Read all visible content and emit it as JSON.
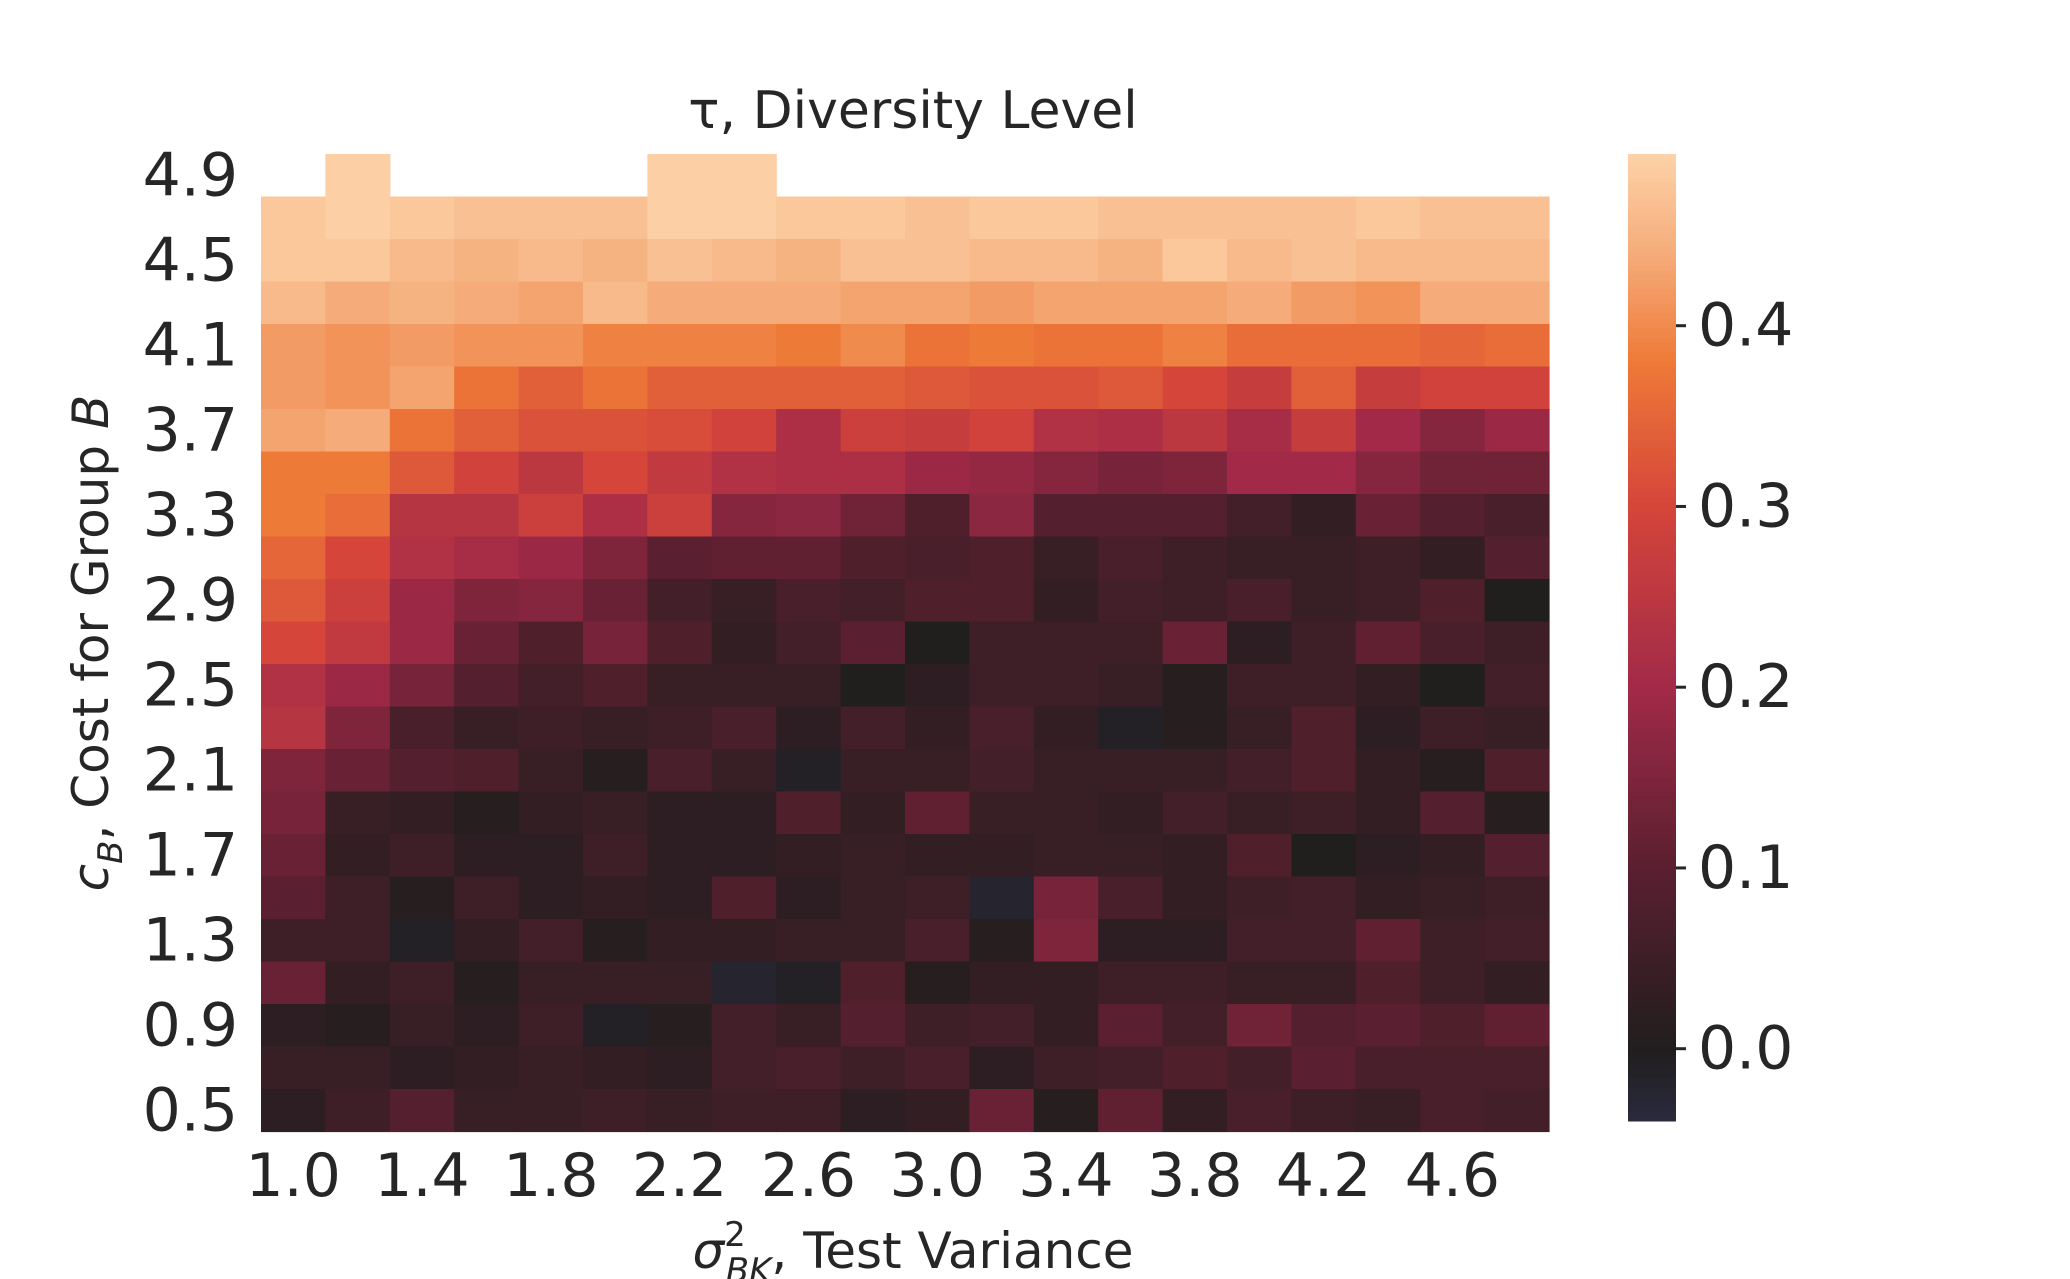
{
  "chart_data": {
    "type": "heatmap",
    "title": "τ, Diversity Level",
    "xlabel": "σ²_BK, Test Variance",
    "ylabel": "c_B, Cost for Group B",
    "x_tick_labels": [
      "1.0",
      "1.4",
      "1.8",
      "2.2",
      "2.6",
      "3.0",
      "3.4",
      "3.8",
      "4.2",
      "4.6"
    ],
    "y_tick_labels": [
      "4.9",
      "4.5",
      "4.1",
      "3.7",
      "3.3",
      "2.9",
      "2.5",
      "2.1",
      "1.7",
      "1.3",
      "0.9",
      "0.5"
    ],
    "x": [
      1.0,
      1.2,
      1.4,
      1.6,
      1.8,
      2.0,
      2.2,
      2.4,
      2.6,
      2.8,
      3.0,
      3.2,
      3.4,
      3.6,
      3.8,
      4.0,
      4.2,
      4.4,
      4.6,
      4.8
    ],
    "y": [
      4.9,
      4.7,
      4.5,
      4.3,
      4.1,
      3.9,
      3.7,
      3.5,
      3.3,
      3.1,
      2.9,
      2.7,
      2.5,
      2.3,
      2.1,
      1.9,
      1.7,
      1.5,
      1.3,
      1.1,
      0.9,
      0.7,
      0.5
    ],
    "values": [
      [
        null,
        0.49,
        null,
        null,
        null,
        null,
        0.49,
        0.49,
        null,
        null,
        null,
        null,
        null,
        null,
        null,
        null,
        null,
        null,
        null,
        null
      ],
      [
        0.48,
        0.49,
        0.48,
        0.47,
        0.47,
        0.47,
        0.49,
        0.49,
        0.48,
        0.48,
        0.47,
        0.48,
        0.48,
        0.47,
        0.47,
        0.47,
        0.47,
        0.48,
        0.47,
        0.47
      ],
      [
        0.48,
        0.48,
        0.46,
        0.45,
        0.46,
        0.45,
        0.47,
        0.46,
        0.45,
        0.47,
        0.47,
        0.46,
        0.46,
        0.45,
        0.48,
        0.46,
        0.47,
        0.46,
        0.46,
        0.46
      ],
      [
        0.46,
        0.44,
        0.45,
        0.44,
        0.43,
        0.46,
        0.44,
        0.44,
        0.44,
        0.43,
        0.43,
        0.42,
        0.43,
        0.43,
        0.43,
        0.44,
        0.42,
        0.41,
        0.44,
        0.44
      ],
      [
        0.42,
        0.41,
        0.42,
        0.41,
        0.41,
        0.39,
        0.39,
        0.39,
        0.38,
        0.4,
        0.37,
        0.38,
        0.37,
        0.37,
        0.39,
        0.36,
        0.36,
        0.36,
        0.35,
        0.36
      ],
      [
        0.42,
        0.41,
        0.43,
        0.37,
        0.34,
        0.37,
        0.34,
        0.34,
        0.34,
        0.34,
        0.33,
        0.32,
        0.32,
        0.33,
        0.3,
        0.27,
        0.34,
        0.27,
        0.29,
        0.29
      ],
      [
        0.43,
        0.44,
        0.37,
        0.34,
        0.32,
        0.32,
        0.31,
        0.29,
        0.22,
        0.28,
        0.27,
        0.29,
        0.23,
        0.22,
        0.25,
        0.21,
        0.27,
        0.2,
        0.16,
        0.19
      ],
      [
        0.38,
        0.38,
        0.33,
        0.29,
        0.25,
        0.3,
        0.26,
        0.23,
        0.22,
        0.22,
        0.19,
        0.18,
        0.16,
        0.14,
        0.15,
        0.2,
        0.2,
        0.16,
        0.13,
        0.13
      ],
      [
        0.38,
        0.36,
        0.24,
        0.24,
        0.28,
        0.22,
        0.28,
        0.16,
        0.17,
        0.13,
        0.08,
        0.17,
        0.09,
        0.09,
        0.09,
        0.06,
        0.03,
        0.12,
        0.09,
        0.07
      ],
      [
        0.35,
        0.3,
        0.23,
        0.21,
        0.19,
        0.15,
        0.1,
        0.11,
        0.11,
        0.08,
        0.07,
        0.08,
        0.04,
        0.07,
        0.05,
        0.04,
        0.04,
        0.05,
        0.03,
        0.09
      ],
      [
        0.33,
        0.28,
        0.19,
        0.15,
        0.16,
        0.12,
        0.06,
        0.04,
        0.07,
        0.06,
        0.08,
        0.08,
        0.03,
        0.06,
        0.05,
        0.07,
        0.04,
        0.05,
        0.08,
        0.0
      ],
      [
        0.3,
        0.26,
        0.19,
        0.12,
        0.08,
        0.14,
        0.08,
        0.03,
        0.06,
        0.1,
        0.0,
        0.05,
        0.05,
        0.05,
        0.12,
        0.02,
        0.05,
        0.11,
        0.07,
        0.05
      ],
      [
        0.23,
        0.19,
        0.14,
        0.09,
        0.06,
        0.08,
        0.04,
        0.04,
        0.04,
        0.0,
        0.02,
        0.05,
        0.05,
        0.04,
        0.01,
        0.05,
        0.05,
        0.03,
        0.0,
        0.06
      ],
      [
        0.24,
        0.15,
        0.07,
        0.04,
        0.05,
        0.04,
        0.05,
        0.07,
        0.02,
        0.06,
        0.03,
        0.07,
        0.03,
        -0.01,
        0.01,
        0.04,
        0.08,
        0.02,
        0.05,
        0.04
      ],
      [
        0.15,
        0.12,
        0.09,
        0.08,
        0.04,
        0.01,
        0.07,
        0.04,
        -0.01,
        0.04,
        0.04,
        0.06,
        0.04,
        0.04,
        0.04,
        0.06,
        0.08,
        0.03,
        0.01,
        0.08
      ],
      [
        0.14,
        0.04,
        0.03,
        0.01,
        0.03,
        0.04,
        0.02,
        0.02,
        0.08,
        0.03,
        0.11,
        0.04,
        0.04,
        0.03,
        0.06,
        0.04,
        0.05,
        0.03,
        0.09,
        0.01
      ],
      [
        0.12,
        0.03,
        0.05,
        0.02,
        0.02,
        0.05,
        0.02,
        0.02,
        0.03,
        0.04,
        0.03,
        0.03,
        0.04,
        0.04,
        0.03,
        0.08,
        0.0,
        0.02,
        0.03,
        0.09
      ],
      [
        0.1,
        0.05,
        0.01,
        0.05,
        0.02,
        0.03,
        0.02,
        0.08,
        0.02,
        0.04,
        0.05,
        -0.02,
        0.14,
        0.07,
        0.03,
        0.05,
        0.06,
        0.03,
        0.04,
        0.05
      ],
      [
        0.05,
        0.05,
        -0.01,
        0.03,
        0.06,
        0.01,
        0.03,
        0.03,
        0.04,
        0.04,
        0.07,
        0.01,
        0.15,
        0.02,
        0.02,
        0.06,
        0.06,
        0.11,
        0.05,
        0.06
      ],
      [
        0.12,
        0.03,
        0.05,
        0.01,
        0.04,
        0.04,
        0.04,
        -0.02,
        -0.01,
        0.08,
        0.01,
        0.03,
        0.03,
        0.05,
        0.05,
        0.04,
        0.04,
        0.08,
        0.05,
        0.03
      ],
      [
        0.02,
        0.01,
        0.04,
        0.02,
        0.05,
        -0.01,
        0.01,
        0.06,
        0.04,
        0.09,
        0.05,
        0.06,
        0.03,
        0.1,
        0.06,
        0.13,
        0.09,
        0.1,
        0.08,
        0.11
      ],
      [
        0.04,
        0.04,
        0.02,
        0.03,
        0.04,
        0.03,
        0.02,
        0.06,
        0.07,
        0.05,
        0.07,
        0.02,
        0.05,
        0.06,
        0.08,
        0.06,
        0.1,
        0.07,
        0.07,
        0.07
      ],
      [
        0.02,
        0.05,
        0.09,
        0.04,
        0.04,
        0.05,
        0.04,
        0.05,
        0.05,
        0.02,
        0.03,
        0.12,
        0.01,
        0.11,
        0.03,
        0.07,
        0.05,
        0.04,
        0.07,
        0.06
      ]
    ],
    "colorbar": {
      "vmin": -0.04,
      "vmax": 0.495,
      "ticks": [
        0.0,
        0.1,
        0.2,
        0.3,
        0.4
      ],
      "tick_labels": [
        "0.0",
        "0.1",
        "0.2",
        "0.3",
        "0.4"
      ]
    },
    "colormap_stops": [
      {
        "v": -0.04,
        "color": "#2a2a3d"
      },
      {
        "v": 0.0,
        "color": "#211e1e"
      },
      {
        "v": 0.1,
        "color": "#5a1f30"
      },
      {
        "v": 0.2,
        "color": "#a22a48"
      },
      {
        "v": 0.3,
        "color": "#d5453a"
      },
      {
        "v": 0.38,
        "color": "#ee7a38"
      },
      {
        "v": 0.44,
        "color": "#f5ac7a"
      },
      {
        "v": 0.495,
        "color": "#fdd2a8"
      }
    ],
    "grid": false
  }
}
